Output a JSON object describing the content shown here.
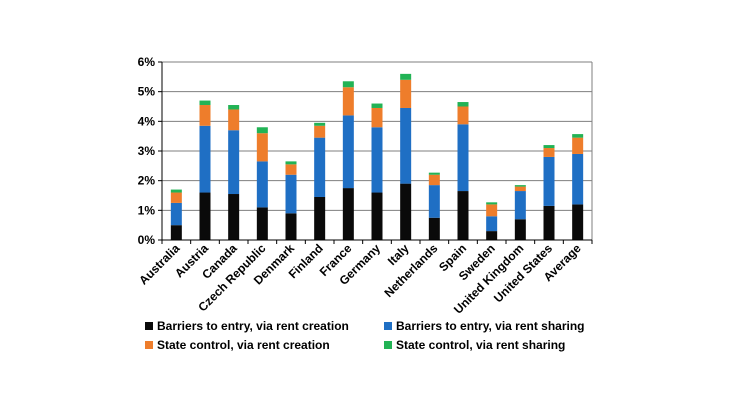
{
  "chart_data": {
    "type": "bar",
    "stacked": true,
    "title": "",
    "xlabel": "",
    "ylabel": "",
    "ylim": [
      0,
      6
    ],
    "y_ticks": [
      "0%",
      "1%",
      "2%",
      "3%",
      "4%",
      "5%",
      "6%"
    ],
    "grid": true,
    "legend_position": "bottom",
    "categories": [
      "Australia",
      "Austria",
      "Canada",
      "Czech Republic",
      "Denmark",
      "Finland",
      "France",
      "Germany",
      "Italy",
      "Netherlands",
      "Spain",
      "Sweden",
      "United Kingdom",
      "United States",
      "Average"
    ],
    "series": [
      {
        "name": "Barriers to entry, via rent creation",
        "color": "#0a0a0a",
        "values": [
          0.5,
          1.6,
          1.55,
          1.1,
          0.9,
          1.45,
          1.75,
          1.6,
          1.9,
          0.75,
          1.65,
          0.3,
          0.7,
          1.15,
          1.2
        ]
      },
      {
        "name": "Barriers to entry, via rent sharing",
        "color": "#1f6fc4",
        "values": [
          0.75,
          2.25,
          2.15,
          1.55,
          1.3,
          2.0,
          2.45,
          2.2,
          2.55,
          1.1,
          2.25,
          0.5,
          0.95,
          1.65,
          1.7
        ]
      },
      {
        "name": "State control, via rent creation",
        "color": "#ee7d2b",
        "values": [
          0.35,
          0.7,
          0.7,
          0.95,
          0.35,
          0.4,
          0.95,
          0.65,
          0.95,
          0.35,
          0.6,
          0.4,
          0.15,
          0.3,
          0.55
        ]
      },
      {
        "name": "State control, via rent sharing",
        "color": "#22b355",
        "values": [
          0.1,
          0.15,
          0.15,
          0.2,
          0.1,
          0.1,
          0.2,
          0.15,
          0.2,
          0.07,
          0.15,
          0.07,
          0.05,
          0.1,
          0.12
        ]
      }
    ]
  }
}
